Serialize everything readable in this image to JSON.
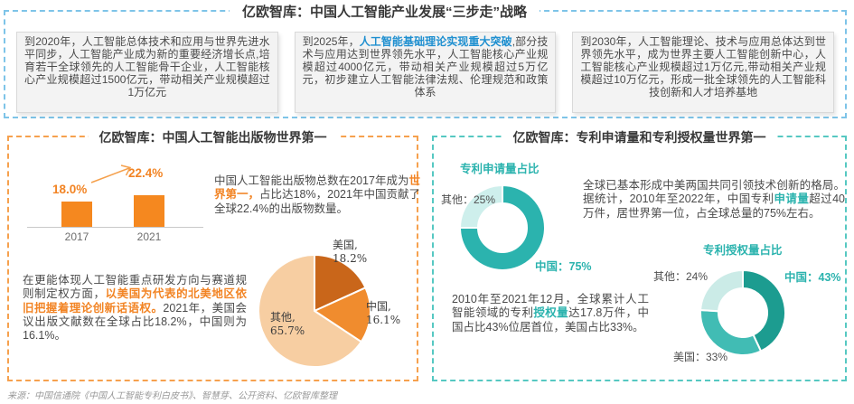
{
  "strategy": {
    "title": "亿欧智库：中国人工智能产业发展“三步走”战略",
    "boxes": [
      {
        "pre": "到2020年，人工智能总体技术和应用与世界先进水平同步，人工智能产业成为新的重要经济增长点,培育若干全球领先的人工智能骨干企业，人工智能核心产业规模超过1500亿元，带动相关产业规模超过1万亿元",
        "highlight": "",
        "post": ""
      },
      {
        "pre": "到2025年，",
        "highlight": "人工智能基础理论实现重大突破",
        "post": ",部分技术与应用达到世界领先水平，人工智能核心产业规模超过4000亿元，带动相关产业规模超过5万亿元，初步建立人工智能法律法规、伦理规范和政策体系"
      },
      {
        "pre": "到2030年，人工智能理论、技术与应用总体达到世界领先水平，成为世界主要人工智能创新中心，人工智能核心产业规模超过1万亿元,带动相关产业规模超过10万亿元，形成一批全球领先的人工智能科技创新和人才培养基地",
        "highlight": "",
        "post": ""
      }
    ]
  },
  "publications": {
    "title": "亿欧智库：中国人工智能出版物世界第一",
    "para1": {
      "pre": "中国人工智能出版物总数在2017年成为",
      "highlight": "世界第一，",
      "post": "占比达18%，2021年中国贡献了全球22.4%的出版物数量。"
    },
    "para2": {
      "pre": "在更能体现人工智能重点研发方向与赛道规则制定权方面，",
      "highlight": "以美国为代表的北美地区依旧把握着理论创新话语权。",
      "post": "2021年，美国会议出版文献数在全球占比18.2%，中国则为16.1%。"
    }
  },
  "patents": {
    "title": "亿欧智库：专利申请量和专利授权量世界第一",
    "para1": {
      "pre": "全球已基本形成中美两国共同引领技术创新的格局。据统计，2010年至2022年，中国专利",
      "highlight": "申请量",
      "post": "超过40万件，居世界第一位，占全球总量的75%左右。"
    },
    "para2": {
      "pre": "2010年至2021年12月，全球累计人工智能领域的专利",
      "highlight": "授权量",
      "post": "达17.8万件，中国占比43%位居首位，美国占比33%。"
    }
  },
  "source": "来源：中国信通院《中国人工智能专利白皮书》、智慧芽、公开资料、亿欧智库整理",
  "colors": {
    "orange_accent": "#F28424",
    "teal_accent": "#2BB3AE",
    "blue_highlight": "#2090D0",
    "blue_dash": "#7EC4E8",
    "orange_dash": "#F6A14E",
    "teal_dash": "#56C8C2"
  },
  "chart_data": [
    {
      "type": "bar",
      "categories": [
        "2017",
        "2021"
      ],
      "values": [
        18.0,
        22.4
      ],
      "value_labels": [
        "18.0%",
        "22.4%"
      ],
      "unit": "%",
      "bar_color": "#F5881F",
      "ylim": [
        0,
        25
      ],
      "grid": false
    },
    {
      "type": "pie",
      "slices": [
        {
          "label": "美国",
          "value": 18.2,
          "color": "#C9661A",
          "label_line1": "美国,",
          "label_line2": "18.2%"
        },
        {
          "label": "中国",
          "value": 16.1,
          "color": "#F08C2E",
          "label_line1": "中国,",
          "label_line2": "16.1%"
        },
        {
          "label": "其他",
          "value": 65.7,
          "color": "#F7CEA2",
          "label_line1": "其他,",
          "label_line2": "65.7%"
        }
      ]
    },
    {
      "type": "pie",
      "subtype": "donut",
      "title": "专利申请量占比",
      "slices": [
        {
          "label": "中国",
          "value": 75,
          "color": "#2BB3AE",
          "label_text": "中国：75%"
        },
        {
          "label": "其他",
          "value": 25,
          "color": "#CEEFEC",
          "label_text": "其他：25%"
        }
      ]
    },
    {
      "type": "pie",
      "subtype": "donut",
      "title": "专利授权量占比",
      "slices": [
        {
          "label": "中国",
          "value": 43,
          "color": "#1C9C90",
          "label_text": "中国：43%"
        },
        {
          "label": "美国",
          "value": 33,
          "color": "#41BCB4",
          "label_text": "美国：33%"
        },
        {
          "label": "其他",
          "value": 24,
          "color": "#CBEBE7",
          "label_text": "其他：24%"
        }
      ]
    }
  ]
}
